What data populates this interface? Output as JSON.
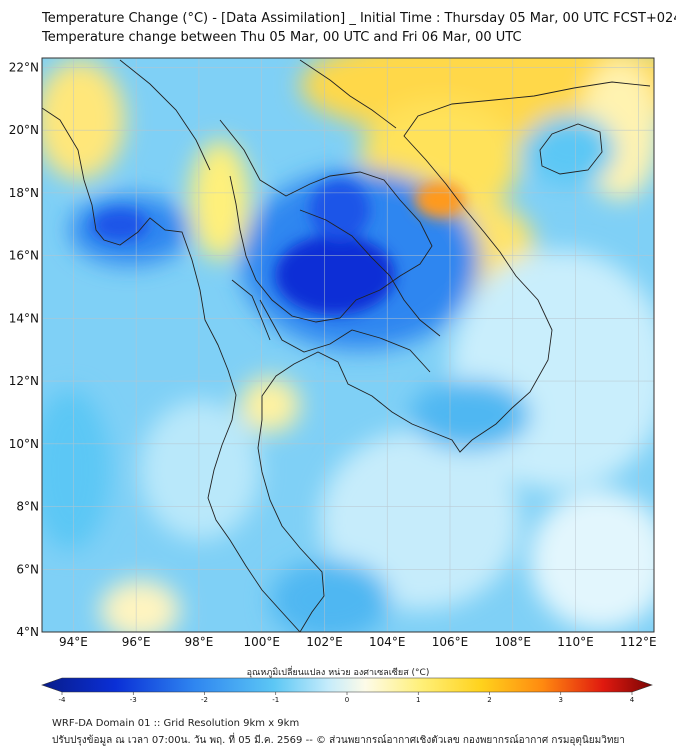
{
  "title_line1": "Temperature Change (°C) - [Data Assimilation] _ Initial Time : Thursday 05 Mar, 00 UTC FCST+024",
  "title_line2": "Temperature change between Thu 05 Mar, 00 UTC and Fri 06 Mar, 00 UTC",
  "lat_labels": [
    "22°N",
    "20°N",
    "18°N",
    "16°N",
    "14°N",
    "12°N",
    "10°N",
    "8°N",
    "6°N",
    "4°N"
  ],
  "lat_values": [
    22,
    20,
    18,
    16,
    14,
    12,
    10,
    8,
    6,
    4
  ],
  "lon_labels": [
    "94°E",
    "96°E",
    "98°E",
    "100°E",
    "102°E",
    "104°E",
    "106°E",
    "108°E",
    "110°E",
    "112°E"
  ],
  "lon_values": [
    94,
    96,
    98,
    100,
    102,
    104,
    106,
    108,
    110,
    112
  ],
  "map_extent": {
    "lon_min": 93,
    "lon_max": 112.5,
    "lat_min": 4,
    "lat_max": 22.3
  },
  "colorbar": {
    "label": "อุณหภูมิเปลี่ยนแปลง หน่วย องศาเซลเซียส (°C)",
    "ticks": [
      "-4",
      "-3",
      "-2",
      "-1",
      "0",
      "1",
      "2",
      "3",
      "4"
    ],
    "tick_values": [
      -4,
      -3,
      -2,
      -1,
      0,
      1,
      2,
      3,
      4
    ],
    "range": [
      -4,
      4
    ]
  },
  "colors": {
    "strong_cool": "#0a2fd6",
    "cool": "#2f86f0",
    "light_cool": "#8fd2f6",
    "neutral": "#eaf8ff",
    "warm": "#ffe24a",
    "strong_warm": "#ff9a1a"
  },
  "footer_line1": "WRF-DA Domain 01 :: Grid Resolution 9km x 9km",
  "footer_line2": "ปรับปรุงข้อมูล ณ เวลา 07:00น. วัน พฤ. ที่ 05 มี.ค. 2569 -- © ส่วนพยากรณ์อากาศเชิงตัวเลข กองพยากรณ์อากาศ กรมอุตุนิยมวิทยา"
}
